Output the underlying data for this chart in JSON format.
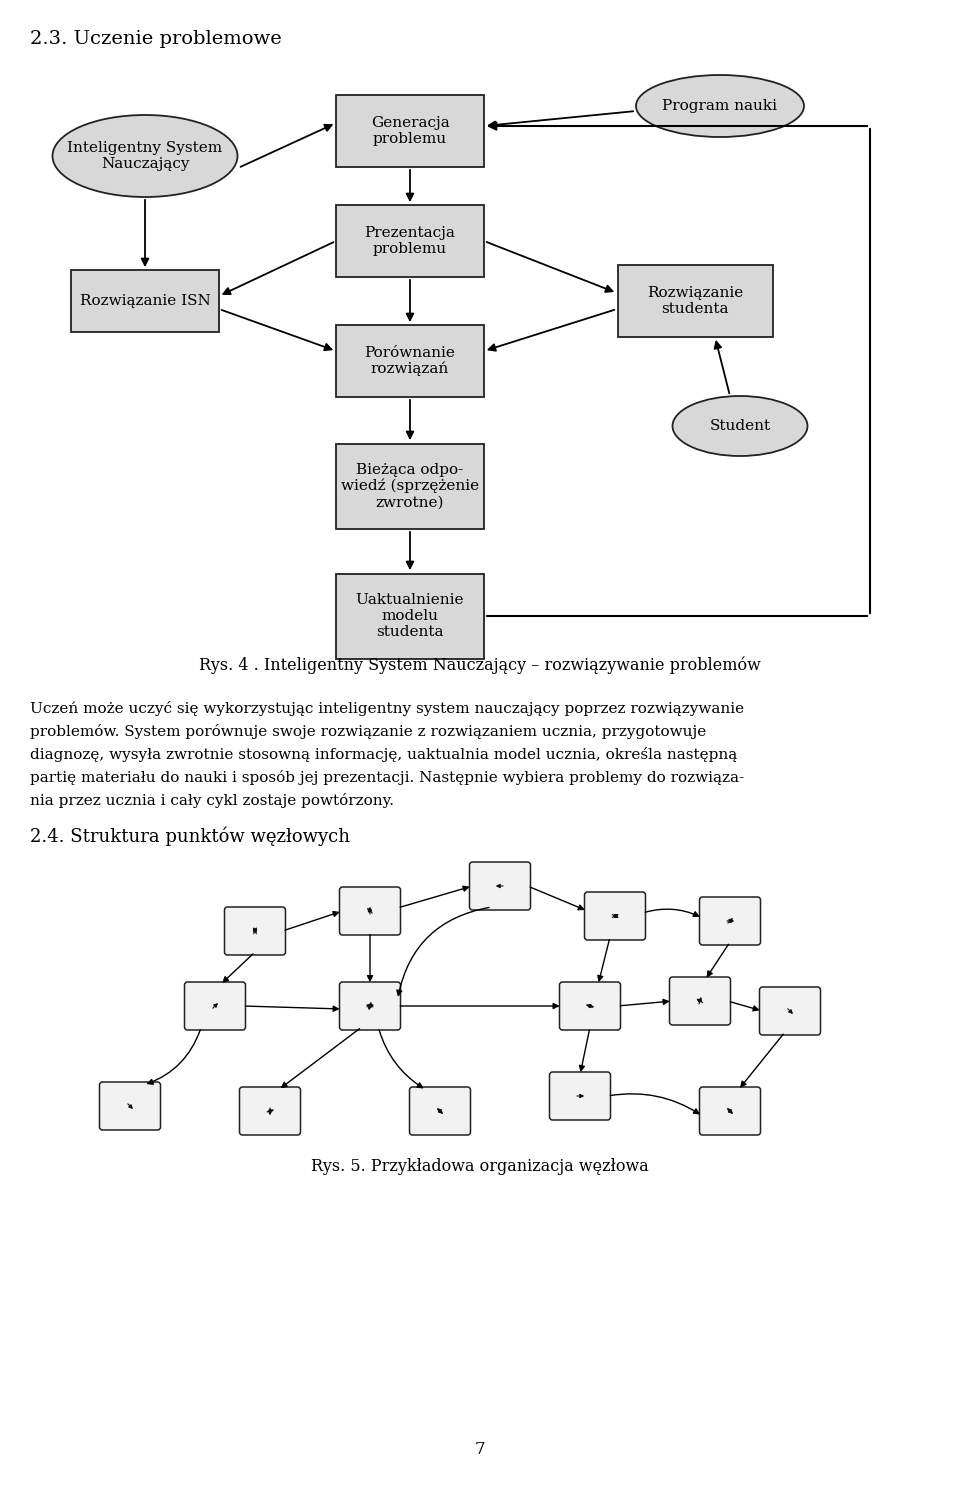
{
  "fig_width": 9.6,
  "fig_height": 14.96,
  "bg": "#ffffff",
  "box_fill": "#d8d8d8",
  "box_edge": "#222222",
  "ellipse_fill": "#d8d8d8",
  "ellipse_edge": "#222222",
  "title": "2.3. Uczenie problemowe",
  "caption1": "Rys. 4 . Inteligentny System Nauczający – rozwiązywanie problemów",
  "para": "Uczeń może uczyć się wykorzystując inteligentny system nauczający poprzez rozwiązywanie problemów. System porównuje swoje rozwiązanie z rozwiązaniem ucznia, przygotowuje diagnozę, wysyła zwrotnie stosowną informację, uaktualnia model ucznia, określa następną partię materiału do nauki i sposób jej prezentacji. Następnie wybiera problemy do rozwiąza-nia przez ucznia i cały cykl zostaje powtórzony.",
  "heading2": "2.4. Struktura punktów węzłowych",
  "caption2": "Rys. 5. Przykładowa organizacja węzłowa",
  "page": "7"
}
